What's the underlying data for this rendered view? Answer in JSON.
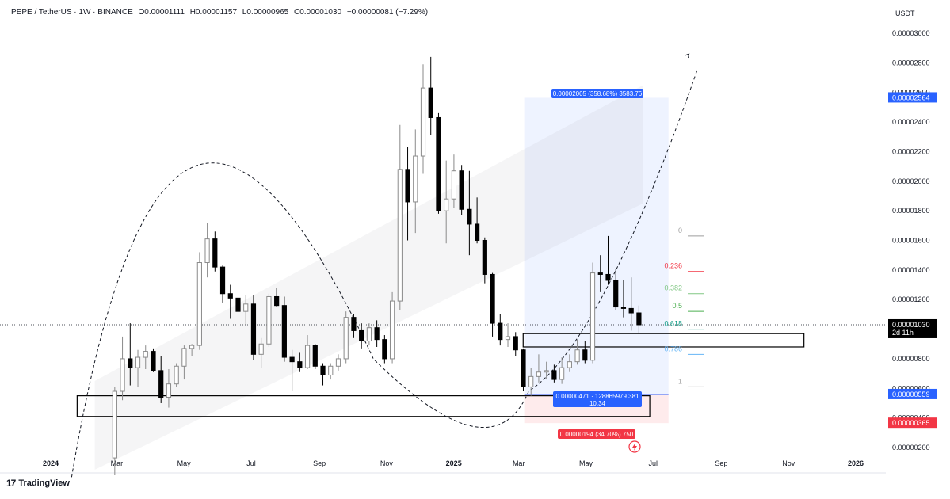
{
  "header": {
    "symbol": "PEPE / TetherUS · 1W · BINANCE",
    "open": "O0.00001111",
    "high": "H0.00001157",
    "low": "L0.00000965",
    "close": "C0.00001030",
    "change": "−0.00000081 (−7.29%)"
  },
  "currency_label": "USDT",
  "brand": "TradingView",
  "brand_logo": "17",
  "chart_data": {
    "type": "candlestick",
    "title": "PEPE / TetherUS · 1W · BINANCE",
    "ylim": [
      1.9e-06,
      3.1e-06
    ],
    "y_ticks": [
      "0.00000200",
      "0.00000400",
      "0.00000600",
      "0.00000800",
      "0.00001000",
      "0.00001200",
      "0.00001400",
      "0.00001600",
      "0.00001800",
      "0.00002000",
      "0.00002200",
      "0.00002400",
      "0.00002600",
      "0.00002800",
      "0.00003000"
    ],
    "y_tick_values": [
      2e-06,
      4e-06,
      6e-06,
      8e-06,
      1e-05,
      1.2e-05,
      1.4e-05,
      1.6e-05,
      1.8e-05,
      2e-05,
      2.2e-05,
      2.4e-05,
      2.6e-05,
      2.8e-05,
      3e-05
    ],
    "x_labels": [
      {
        "label": "2024",
        "date": "2024-01-01",
        "bold": true
      },
      {
        "label": "Mar",
        "date": "2024-03-01"
      },
      {
        "label": "May",
        "date": "2024-05-01"
      },
      {
        "label": "Jul",
        "date": "2024-07-01"
      },
      {
        "label": "Sep",
        "date": "2024-09-01"
      },
      {
        "label": "Nov",
        "date": "2024-11-01"
      },
      {
        "label": "2025",
        "date": "2025-01-01",
        "bold": true
      },
      {
        "label": "Mar",
        "date": "2025-03-01"
      },
      {
        "label": "May",
        "date": "2025-05-01"
      },
      {
        "label": "Jul",
        "date": "2025-07-01"
      },
      {
        "label": "Sep",
        "date": "2025-09-01"
      },
      {
        "label": "Nov",
        "date": "2025-11-01"
      },
      {
        "label": "2026",
        "date": "2026-01-01",
        "bold": true
      }
    ],
    "candles": [
      {
        "date": "2024-02-26",
        "o": 1.3e-06,
        "h": 6.1e-06,
        "l": 0.0,
        "c": 5.8e-06
      },
      {
        "date": "2024-03-04",
        "o": 5.8e-06,
        "h": 9.5e-06,
        "l": 5.2e-06,
        "c": 8e-06
      },
      {
        "date": "2024-03-11",
        "o": 8e-06,
        "h": 1.04e-05,
        "l": 6.2e-06,
        "c": 7.4e-06
      },
      {
        "date": "2024-03-18",
        "o": 7.4e-06,
        "h": 8.6e-06,
        "l": 6.1e-06,
        "c": 8.1e-06
      },
      {
        "date": "2024-03-25",
        "o": 8.1e-06,
        "h": 8.9e-06,
        "l": 7.3e-06,
        "c": 8.5e-06
      },
      {
        "date": "2024-04-01",
        "o": 8.5e-06,
        "h": 8.7e-06,
        "l": 7.1e-06,
        "c": 7.2e-06
      },
      {
        "date": "2024-04-08",
        "o": 7.2e-06,
        "h": 8.2e-06,
        "l": 5e-06,
        "c": 5.4e-06
      },
      {
        "date": "2024-04-15",
        "o": 5.4e-06,
        "h": 7.3e-06,
        "l": 4.7e-06,
        "c": 6.3e-06
      },
      {
        "date": "2024-04-22",
        "o": 6.3e-06,
        "h": 7.7e-06,
        "l": 6.1e-06,
        "c": 7.5e-06
      },
      {
        "date": "2024-04-29",
        "o": 7.5e-06,
        "h": 8.9e-06,
        "l": 6.6e-06,
        "c": 8.7e-06
      },
      {
        "date": "2024-05-06",
        "o": 8.7e-06,
        "h": 9e-06,
        "l": 8.2e-06,
        "c": 8.9e-06
      },
      {
        "date": "2024-05-13",
        "o": 8.9e-06,
        "h": 1.52e-05,
        "l": 8.6e-06,
        "c": 1.45e-05
      },
      {
        "date": "2024-05-20",
        "o": 1.45e-05,
        "h": 1.72e-05,
        "l": 1.35e-05,
        "c": 1.61e-05
      },
      {
        "date": "2024-05-27",
        "o": 1.61e-05,
        "h": 1.66e-05,
        "l": 1.39e-05,
        "c": 1.42e-05
      },
      {
        "date": "2024-06-03",
        "o": 1.42e-05,
        "h": 1.43e-05,
        "l": 1.18e-05,
        "c": 1.24e-05
      },
      {
        "date": "2024-06-10",
        "o": 1.24e-05,
        "h": 1.3e-05,
        "l": 1.07e-05,
        "c": 1.21e-05
      },
      {
        "date": "2024-06-17",
        "o": 1.21e-05,
        "h": 1.24e-05,
        "l": 1.04e-05,
        "c": 1.12e-05
      },
      {
        "date": "2024-06-24",
        "o": 1.12e-05,
        "h": 1.23e-05,
        "l": 1.03e-05,
        "c": 1.17e-05
      },
      {
        "date": "2024-07-01",
        "o": 1.17e-05,
        "h": 1.23e-05,
        "l": 7.9e-06,
        "c": 8.3e-06
      },
      {
        "date": "2024-07-08",
        "o": 8.3e-06,
        "h": 9.4e-06,
        "l": 7.4e-06,
        "c": 9e-06
      },
      {
        "date": "2024-07-15",
        "o": 9e-06,
        "h": 1.24e-05,
        "l": 8.8e-06,
        "c": 1.22e-05
      },
      {
        "date": "2024-07-22",
        "o": 1.22e-05,
        "h": 1.28e-05,
        "l": 1.15e-05,
        "c": 1.16e-05
      },
      {
        "date": "2024-07-29",
        "o": 1.16e-05,
        "h": 1.22e-05,
        "l": 7.8e-06,
        "c": 8.1e-06
      },
      {
        "date": "2024-08-05",
        "o": 8.1e-06,
        "h": 8.6e-06,
        "l": 5.8e-06,
        "c": 7.8e-06
      },
      {
        "date": "2024-08-12",
        "o": 7.8e-06,
        "h": 8.4e-06,
        "l": 7.1e-06,
        "c": 7.4e-06
      },
      {
        "date": "2024-08-19",
        "o": 7.4e-06,
        "h": 9.6e-06,
        "l": 7.3e-06,
        "c": 8.9e-06
      },
      {
        "date": "2024-08-26",
        "o": 8.9e-06,
        "h": 9e-06,
        "l": 7.3e-06,
        "c": 7.5e-06
      },
      {
        "date": "2024-09-02",
        "o": 7.5e-06,
        "h": 7.7e-06,
        "l": 6.2e-06,
        "c": 6.9e-06
      },
      {
        "date": "2024-09-09",
        "o": 6.9e-06,
        "h": 7.7e-06,
        "l": 6.6e-06,
        "c": 7.5e-06
      },
      {
        "date": "2024-09-16",
        "o": 7.5e-06,
        "h": 8.3e-06,
        "l": 7.2e-06,
        "c": 8e-06
      },
      {
        "date": "2024-09-23",
        "o": 8e-06,
        "h": 1.12e-05,
        "l": 7.7e-06,
        "c": 1.08e-05
      },
      {
        "date": "2024-09-30",
        "o": 1.08e-05,
        "h": 1.1e-05,
        "l": 9.4e-06,
        "c": 9.9e-06
      },
      {
        "date": "2024-10-07",
        "o": 9.9e-06,
        "h": 1.04e-05,
        "l": 8.7e-06,
        "c": 9.2e-06
      },
      {
        "date": "2024-10-14",
        "o": 9.2e-06,
        "h": 1.04e-05,
        "l": 8.9e-06,
        "c": 1.01e-05
      },
      {
        "date": "2024-10-21",
        "o": 1.01e-05,
        "h": 1.06e-05,
        "l": 8.8e-06,
        "c": 9.3e-06
      },
      {
        "date": "2024-10-28",
        "o": 9.3e-06,
        "h": 9.6e-06,
        "l": 7.7e-06,
        "c": 8e-06
      },
      {
        "date": "2024-11-04",
        "o": 8e-06,
        "h": 1.25e-05,
        "l": 7.7e-06,
        "c": 1.19e-05
      },
      {
        "date": "2024-11-11",
        "o": 1.19e-05,
        "h": 2.38e-05,
        "l": 1.13e-05,
        "c": 2.08e-05
      },
      {
        "date": "2024-11-18",
        "o": 2.08e-05,
        "h": 2.23e-05,
        "l": 1.6e-05,
        "c": 1.86e-05
      },
      {
        "date": "2024-11-25",
        "o": 1.86e-05,
        "h": 2.35e-05,
        "l": 1.65e-05,
        "c": 2.17e-05
      },
      {
        "date": "2024-12-02",
        "o": 2.17e-05,
        "h": 2.79e-05,
        "l": 2.05e-05,
        "c": 2.63e-05
      },
      {
        "date": "2024-12-09",
        "o": 2.63e-05,
        "h": 2.84e-05,
        "l": 2.31e-05,
        "c": 2.43e-05
      },
      {
        "date": "2024-12-16",
        "o": 2.43e-05,
        "h": 2.46e-05,
        "l": 1.78e-05,
        "c": 1.8e-05
      },
      {
        "date": "2024-12-23",
        "o": 1.8e-05,
        "h": 2.14e-05,
        "l": 1.58e-05,
        "c": 1.88e-05
      },
      {
        "date": "2024-12-30",
        "o": 1.88e-05,
        "h": 2.18e-05,
        "l": 1.82e-05,
        "c": 2.07e-05
      },
      {
        "date": "2025-01-06",
        "o": 2.07e-05,
        "h": 2.11e-05,
        "l": 1.77e-05,
        "c": 1.81e-05
      },
      {
        "date": "2025-01-13",
        "o": 1.81e-05,
        "h": 2.07e-05,
        "l": 1.5e-05,
        "c": 1.71e-05
      },
      {
        "date": "2025-01-20",
        "o": 1.71e-05,
        "h": 1.89e-05,
        "l": 1.58e-05,
        "c": 1.6e-05
      },
      {
        "date": "2025-01-27",
        "o": 1.6e-05,
        "h": 1.62e-05,
        "l": 1.31e-05,
        "c": 1.37e-05
      },
      {
        "date": "2025-02-03",
        "o": 1.37e-05,
        "h": 1.38e-05,
        "l": 9.5e-06,
        "c": 1.04e-05
      },
      {
        "date": "2025-02-10",
        "o": 1.04e-05,
        "h": 1.1e-05,
        "l": 8.9e-06,
        "c": 9.3e-06
      },
      {
        "date": "2025-02-17",
        "o": 9.3e-06,
        "h": 1.04e-05,
        "l": 8.8e-06,
        "c": 9.5e-06
      },
      {
        "date": "2025-02-24",
        "o": 9.5e-06,
        "h": 9.8e-06,
        "l": 8.2e-06,
        "c": 8.6e-06
      },
      {
        "date": "2025-03-03",
        "o": 8.6e-06,
        "h": 8.7e-06,
        "l": 5.8e-06,
        "c": 6.1e-06
      },
      {
        "date": "2025-03-10",
        "o": 6.1e-06,
        "h": 7.4e-06,
        "l": 5.5e-06,
        "c": 6.8e-06
      },
      {
        "date": "2025-03-17",
        "o": 6.8e-06,
        "h": 8.3e-06,
        "l": 6.4e-06,
        "c": 7.1e-06
      },
      {
        "date": "2025-03-24",
        "o": 7.1e-06,
        "h": 7.8e-06,
        "l": 6.6e-06,
        "c": 7.2e-06
      },
      {
        "date": "2025-03-31",
        "o": 7.2e-06,
        "h": 7.6e-06,
        "l": 6.4e-06,
        "c": 6.6e-06
      },
      {
        "date": "2025-04-07",
        "o": 6.6e-06,
        "h": 8.1e-06,
        "l": 6.3e-06,
        "c": 7.4e-06
      },
      {
        "date": "2025-04-14",
        "o": 7.4e-06,
        "h": 8.3e-06,
        "l": 7.1e-06,
        "c": 7.8e-06
      },
      {
        "date": "2025-04-21",
        "o": 7.8e-06,
        "h": 9.3e-06,
        "l": 7.6e-06,
        "c": 8.6e-06
      },
      {
        "date": "2025-04-28",
        "o": 8.6e-06,
        "h": 9.2e-06,
        "l": 7.7e-06,
        "c": 7.9e-06
      },
      {
        "date": "2025-05-05",
        "o": 7.9e-06,
        "h": 1.45e-05,
        "l": 7.7e-06,
        "c": 1.38e-05
      },
      {
        "date": "2025-05-12",
        "o": 1.38e-05,
        "h": 1.5e-05,
        "l": 1.25e-05,
        "c": 1.37e-05
      },
      {
        "date": "2025-05-19",
        "o": 1.37e-05,
        "h": 1.63e-05,
        "l": 1.3e-05,
        "c": 1.33e-05
      },
      {
        "date": "2025-05-26",
        "o": 1.33e-05,
        "h": 1.41e-05,
        "l": 1.13e-05,
        "c": 1.15e-05
      },
      {
        "date": "2025-06-02",
        "o": 1.15e-05,
        "h": 1.33e-05,
        "l": 1.08e-05,
        "c": 1.14e-05
      },
      {
        "date": "2025-06-09",
        "o": 1.14e-05,
        "h": 1.35e-05,
        "l": 9.9e-06,
        "c": 1.11e-05
      },
      {
        "date": "2025-06-16",
        "o": 1.11e-05,
        "h": 1.16e-05,
        "l": 9.7e-06,
        "c": 1.03e-05
      }
    ],
    "current_price": {
      "value": 1.03e-05,
      "label": "0.00001030",
      "countdown": "2d 11h"
    },
    "fib": {
      "levels": [
        {
          "label": "0",
          "value": 1.63e-05,
          "color": "#9e9e9e"
        },
        {
          "label": "0.236",
          "value": 1.39e-05,
          "color": "#f23645"
        },
        {
          "label": "0.382",
          "value": 1.24e-05,
          "color": "#81c784"
        },
        {
          "label": "0.5",
          "value": 1.12e-05,
          "color": "#4caf50"
        },
        {
          "label": "0.618",
          "value": 1e-05,
          "color": "#089981"
        },
        {
          "label": "0.786",
          "value": 8.3e-06,
          "color": "#64b5f6"
        },
        {
          "label": "1",
          "value": 6.1e-06,
          "color": "#9e9e9e"
        }
      ]
    },
    "position": {
      "entry": 5.59e-06,
      "target": 2.564e-05,
      "stop": 3.65e-06,
      "start_date": "2025-03-06",
      "end_date": "2025-07-15",
      "target_text": "0.00002005 (358.68%) 3583.76",
      "entry_text": "0.00000471 · 128865979.381",
      "ratio_text": "10.34",
      "stop_text": "0.00000194 (34.70%) 750",
      "target_price_label": "0.00002564",
      "entry_price_label": "0.00000559",
      "stop_price_label": "0.00000365"
    },
    "zones": [
      {
        "name": "support-zone",
        "from_date": "2024-01-25",
        "to_date": "2025-06-28",
        "top": 5.5e-06,
        "bottom": 4.1e-06
      },
      {
        "name": "resistance-zone",
        "from_date": "2025-03-05",
        "to_date": "2025-11-15",
        "top": 9.7e-06,
        "bottom": 8.8e-06
      }
    ],
    "colors": {
      "bull": "#c2c2c2",
      "bear": "#000000",
      "target_zone": "#2962ff",
      "stop_zone": "#f23645",
      "entry_line": "#2962ff"
    }
  }
}
